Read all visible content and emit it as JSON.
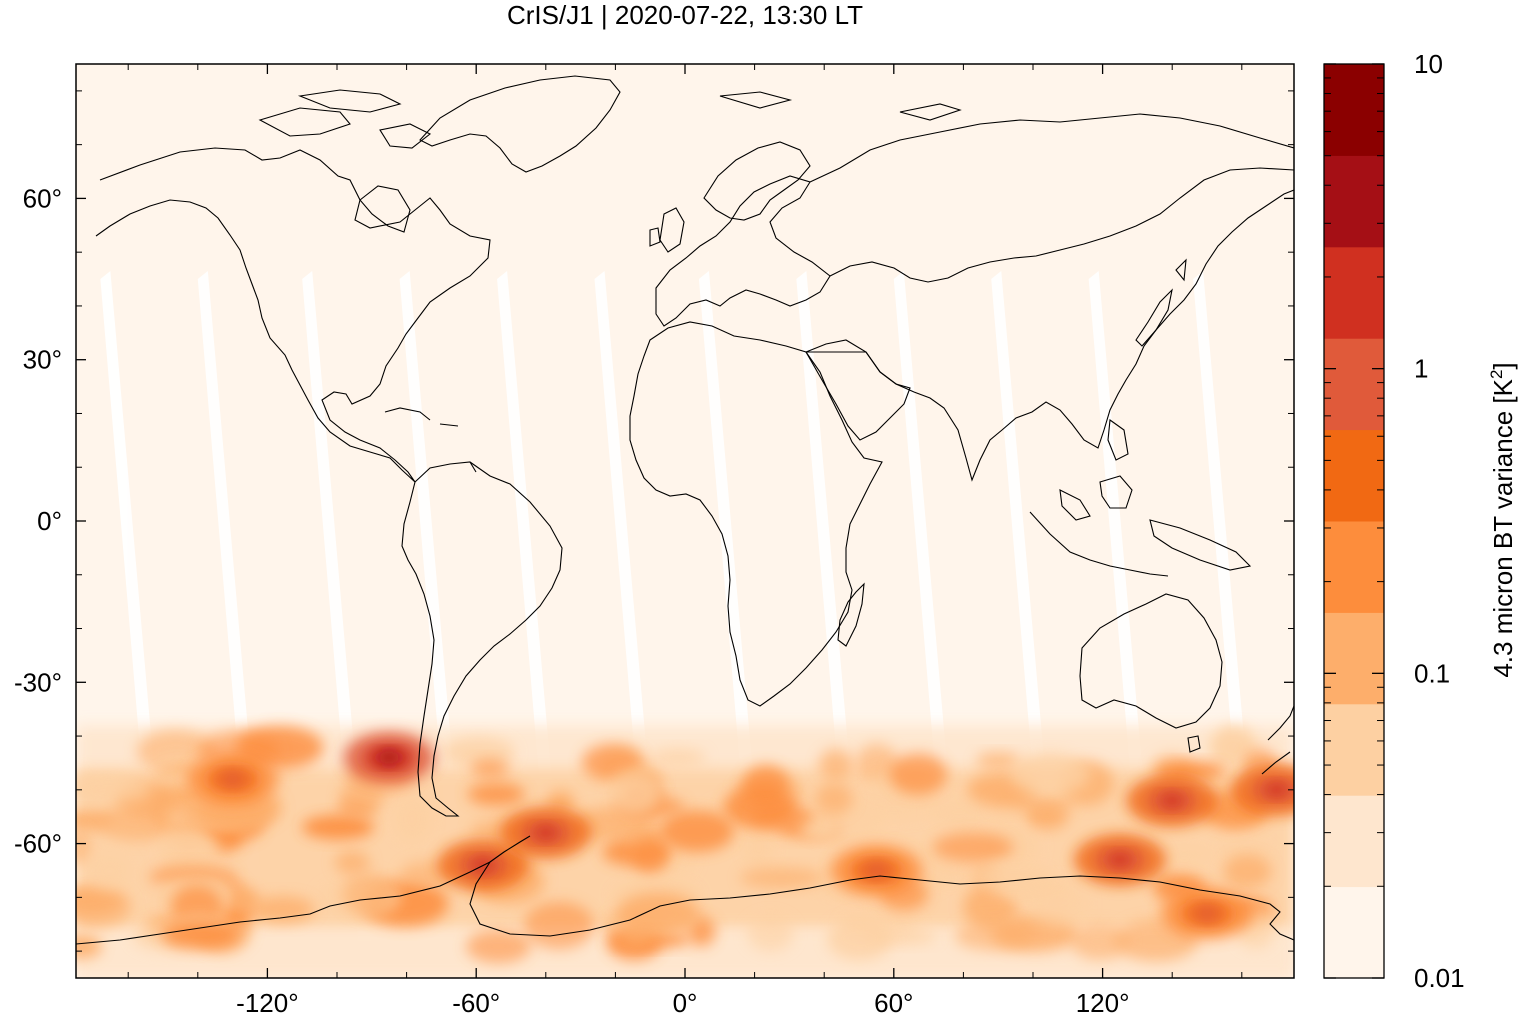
{
  "title": "CrIS/J1 | 2020-07-22, 13:30 LT",
  "map": {
    "projection": "equirectangular",
    "x_ticks": [
      "-120°",
      "-60°",
      "0°",
      "60°",
      "120°"
    ],
    "y_ticks": [
      "60°",
      "30°",
      "0°",
      "-30°",
      "-60°"
    ],
    "lon_range": [
      -175,
      175
    ],
    "lat_range": [
      -85,
      85
    ],
    "background_color": "#fff5eb"
  },
  "colorbar": {
    "label": "4.3 micron BT variance [K",
    "label_superscript": "2",
    "label_suffix": "]",
    "ticks": [
      "10",
      "1",
      "0.1",
      "0.01"
    ],
    "scale": "log",
    "range": [
      0.01,
      10
    ],
    "colors": [
      "#fff5eb",
      "#fee6ce",
      "#fdd0a2",
      "#fdae6b",
      "#fd8d3c",
      "#f16913",
      "#e05a3a",
      "#d03020",
      "#a50f15",
      "#8b0000"
    ]
  },
  "chart_data": {
    "type": "heatmap",
    "title": "CrIS/J1 | 2020-07-22, 13:30 LT",
    "xlabel": "",
    "ylabel": "",
    "x_ticks": [
      -120,
      -60,
      0,
      60,
      120
    ],
    "y_ticks": [
      60,
      30,
      0,
      -30,
      -60
    ],
    "xlim": [
      -175,
      175
    ],
    "ylim": [
      -85,
      85
    ],
    "colorbar_label": "4.3 micron BT variance [K^2]",
    "colorbar_scale": "log",
    "colorbar_range": [
      0.01,
      10
    ],
    "hotspots": [
      {
        "lon": -85,
        "lat": -44,
        "value": 3
      },
      {
        "lon": -58,
        "lat": -64,
        "value": 2
      },
      {
        "lon": -40,
        "lat": -58,
        "value": 1.5
      },
      {
        "lon": -130,
        "lat": -48,
        "value": 0.8
      },
      {
        "lon": 140,
        "lat": -52,
        "value": 2
      },
      {
        "lon": 125,
        "lat": -63,
        "value": 2
      },
      {
        "lon": 170,
        "lat": -50,
        "value": 1.5
      },
      {
        "lon": 55,
        "lat": -65,
        "value": 0.8
      },
      {
        "lon": 150,
        "lat": -73,
        "value": 1.2
      }
    ]
  }
}
